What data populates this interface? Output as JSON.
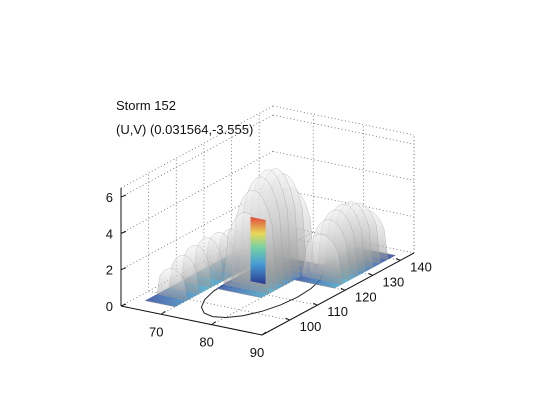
{
  "chart_data": {
    "type": "surface3d",
    "title": "Storm 152",
    "subtitle": "(U,V) (0.031564,-3.555)",
    "xlabel": "",
    "ylabel": "",
    "zlabel": "",
    "x_ticks": [
      "70",
      "80",
      "90"
    ],
    "y_ticks": [
      "100",
      "110",
      "120",
      "130",
      "140"
    ],
    "z_ticks": [
      "0",
      "2",
      "4",
      "6"
    ],
    "xlim": [
      62,
      90
    ],
    "ylim": [
      90,
      145
    ],
    "zlim": [
      0,
      6.5
    ],
    "grid": true,
    "colormap": "jet",
    "isosurface_color": "#c8c8c8",
    "surfaces": [
      {
        "x": [
          64,
          70
        ],
        "y": [
          95,
          130
        ],
        "z_max": 2.2
      },
      {
        "x": [
          71,
          80
        ],
        "y": [
          108,
          130
        ],
        "z_max": 5.9
      },
      {
        "x": [
          80,
          88
        ],
        "y": [
          120,
          142
        ],
        "z_max": 3.5
      }
    ]
  }
}
